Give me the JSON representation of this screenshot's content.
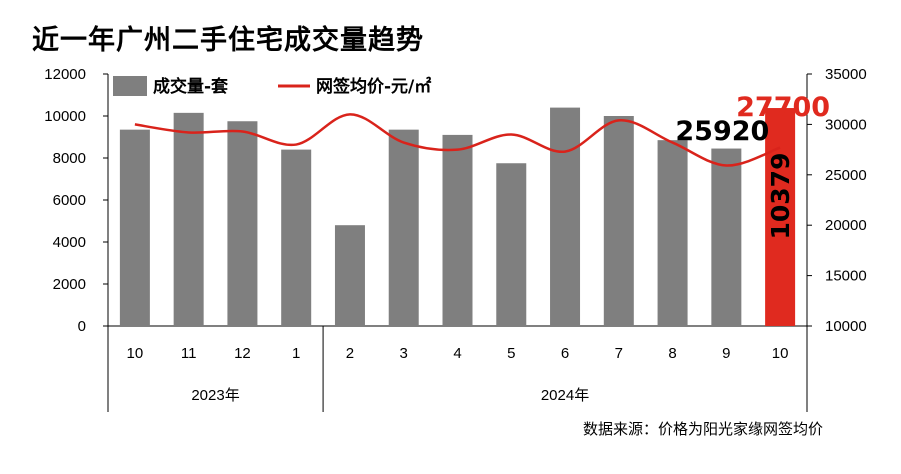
{
  "title": "近一年广州二手住宅成交量趋势",
  "source": "数据来源：价格为阳光家缘网签均价",
  "colors": {
    "bar": "#7f7f7f",
    "highlight_bar": "#e02a1f",
    "line": "#d9231b",
    "text": "#000000"
  },
  "chart_data": {
    "type": "bar",
    "categories": [
      "10",
      "11",
      "12",
      "1",
      "2",
      "3",
      "4",
      "5",
      "6",
      "7",
      "8",
      "9",
      "10"
    ],
    "year_groups": [
      {
        "label": "2023年",
        "count": 4
      },
      {
        "label": "2024年",
        "count": 9
      }
    ],
    "series": [
      {
        "name": "成交量-套",
        "kind": "bar",
        "axis": "left",
        "values": [
          9350,
          10150,
          9750,
          8400,
          4800,
          9350,
          9100,
          7750,
          10400,
          10000,
          8850,
          8450,
          10379
        ]
      },
      {
        "name": "网签均价-元/㎡",
        "kind": "line",
        "axis": "right",
        "values": [
          30000,
          29200,
          29300,
          28000,
          31000,
          28200,
          27500,
          29000,
          27300,
          30400,
          28200,
          25920,
          27700
        ]
      }
    ],
    "left_axis": {
      "min": 0,
      "max": 12000,
      "ticks": [
        0,
        2000,
        4000,
        6000,
        8000,
        10000,
        12000
      ]
    },
    "right_axis": {
      "min": 10000,
      "max": 35000,
      "ticks": [
        10000,
        15000,
        20000,
        25000,
        30000,
        35000
      ]
    },
    "annotations": [
      {
        "text": "25920",
        "color": "#000000"
      },
      {
        "text": "27700",
        "color": "#e02a1f"
      },
      {
        "text": "10379",
        "color": "#000000"
      }
    ],
    "legend_position": "top"
  }
}
